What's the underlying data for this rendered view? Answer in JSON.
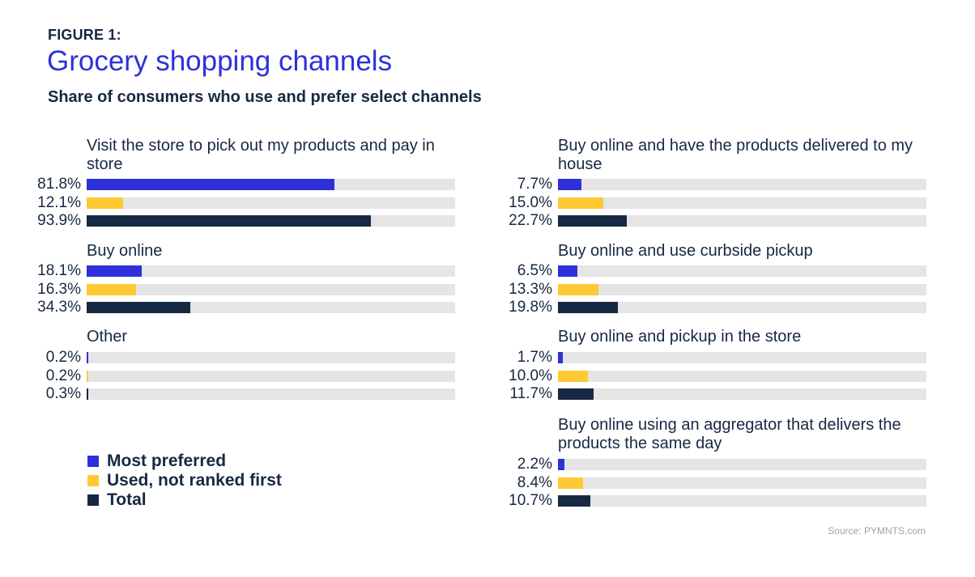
{
  "header": {
    "figure_label": "FIGURE 1:",
    "title": "Grocery shopping channels",
    "subtitle": "Share of consumers who use and prefer select channels"
  },
  "source": "Source: PYMNTS.com",
  "chart_data": {
    "type": "bar",
    "orientation": "horizontal",
    "title": "Grocery shopping channels",
    "subtitle": "Share of consumers who use and prefer select channels",
    "xlim": [
      0,
      121.6
    ],
    "grid": false,
    "legend_placement": "bottom-left",
    "legend": [
      {
        "name": "Most preferred",
        "color": "#2e31d9"
      },
      {
        "name": "Used, not ranked first",
        "color": "#ffc933"
      },
      {
        "name": "Total",
        "color": "#172842"
      }
    ],
    "track_color": "#e5e5e5",
    "groups": [
      {
        "category": "Visit the store to pick out my products and pay in store",
        "values": [
          81.8,
          12.1,
          93.9
        ],
        "labels": [
          "81.8%",
          "12.1%",
          "93.9%"
        ]
      },
      {
        "category": "Buy online",
        "values": [
          18.1,
          16.3,
          34.3
        ],
        "labels": [
          "18.1%",
          "16.3%",
          "34.3%"
        ]
      },
      {
        "category": "Other",
        "values": [
          0.2,
          0.2,
          0.3
        ],
        "labels": [
          "0.2%",
          "0.2%",
          "0.3%"
        ]
      },
      {
        "category": "Buy online and have the products delivered to my house",
        "values": [
          7.7,
          15.0,
          22.7
        ],
        "labels": [
          "7.7%",
          "15.0%",
          "22.7%"
        ]
      },
      {
        "category": "Buy online and use curbside pickup",
        "values": [
          6.5,
          13.3,
          19.8
        ],
        "labels": [
          "6.5%",
          "13.3%",
          "19.8%"
        ]
      },
      {
        "category": "Buy online and pickup in the store",
        "values": [
          1.7,
          10.0,
          11.7
        ],
        "labels": [
          "1.7%",
          "10.0%",
          "11.7%"
        ]
      },
      {
        "category": "Buy online using an aggregator that delivers the products the same day",
        "values": [
          2.2,
          8.4,
          10.7
        ],
        "labels": [
          "2.2%",
          "8.4%",
          "10.7%"
        ]
      }
    ]
  }
}
